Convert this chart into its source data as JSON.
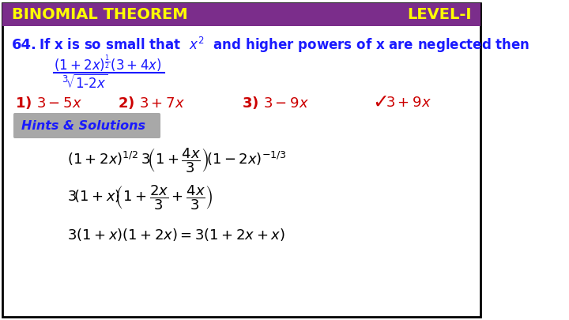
{
  "bg_color": "#ffffff",
  "border_color": "#000000",
  "header_bg": "#7b2d8b",
  "header_text_left": "BINOMIAL THEOREM",
  "header_text_right": "LEVEL-I",
  "header_text_color": "#ffff00",
  "question_number": "64.",
  "question_color": "#1a1aff",
  "question_text": "If x is so small that",
  "answer_correct": 4,
  "hints_bg": "#b0b0b0",
  "hints_text": "Hints & Solutions",
  "checkmark_color": "#cc0000"
}
